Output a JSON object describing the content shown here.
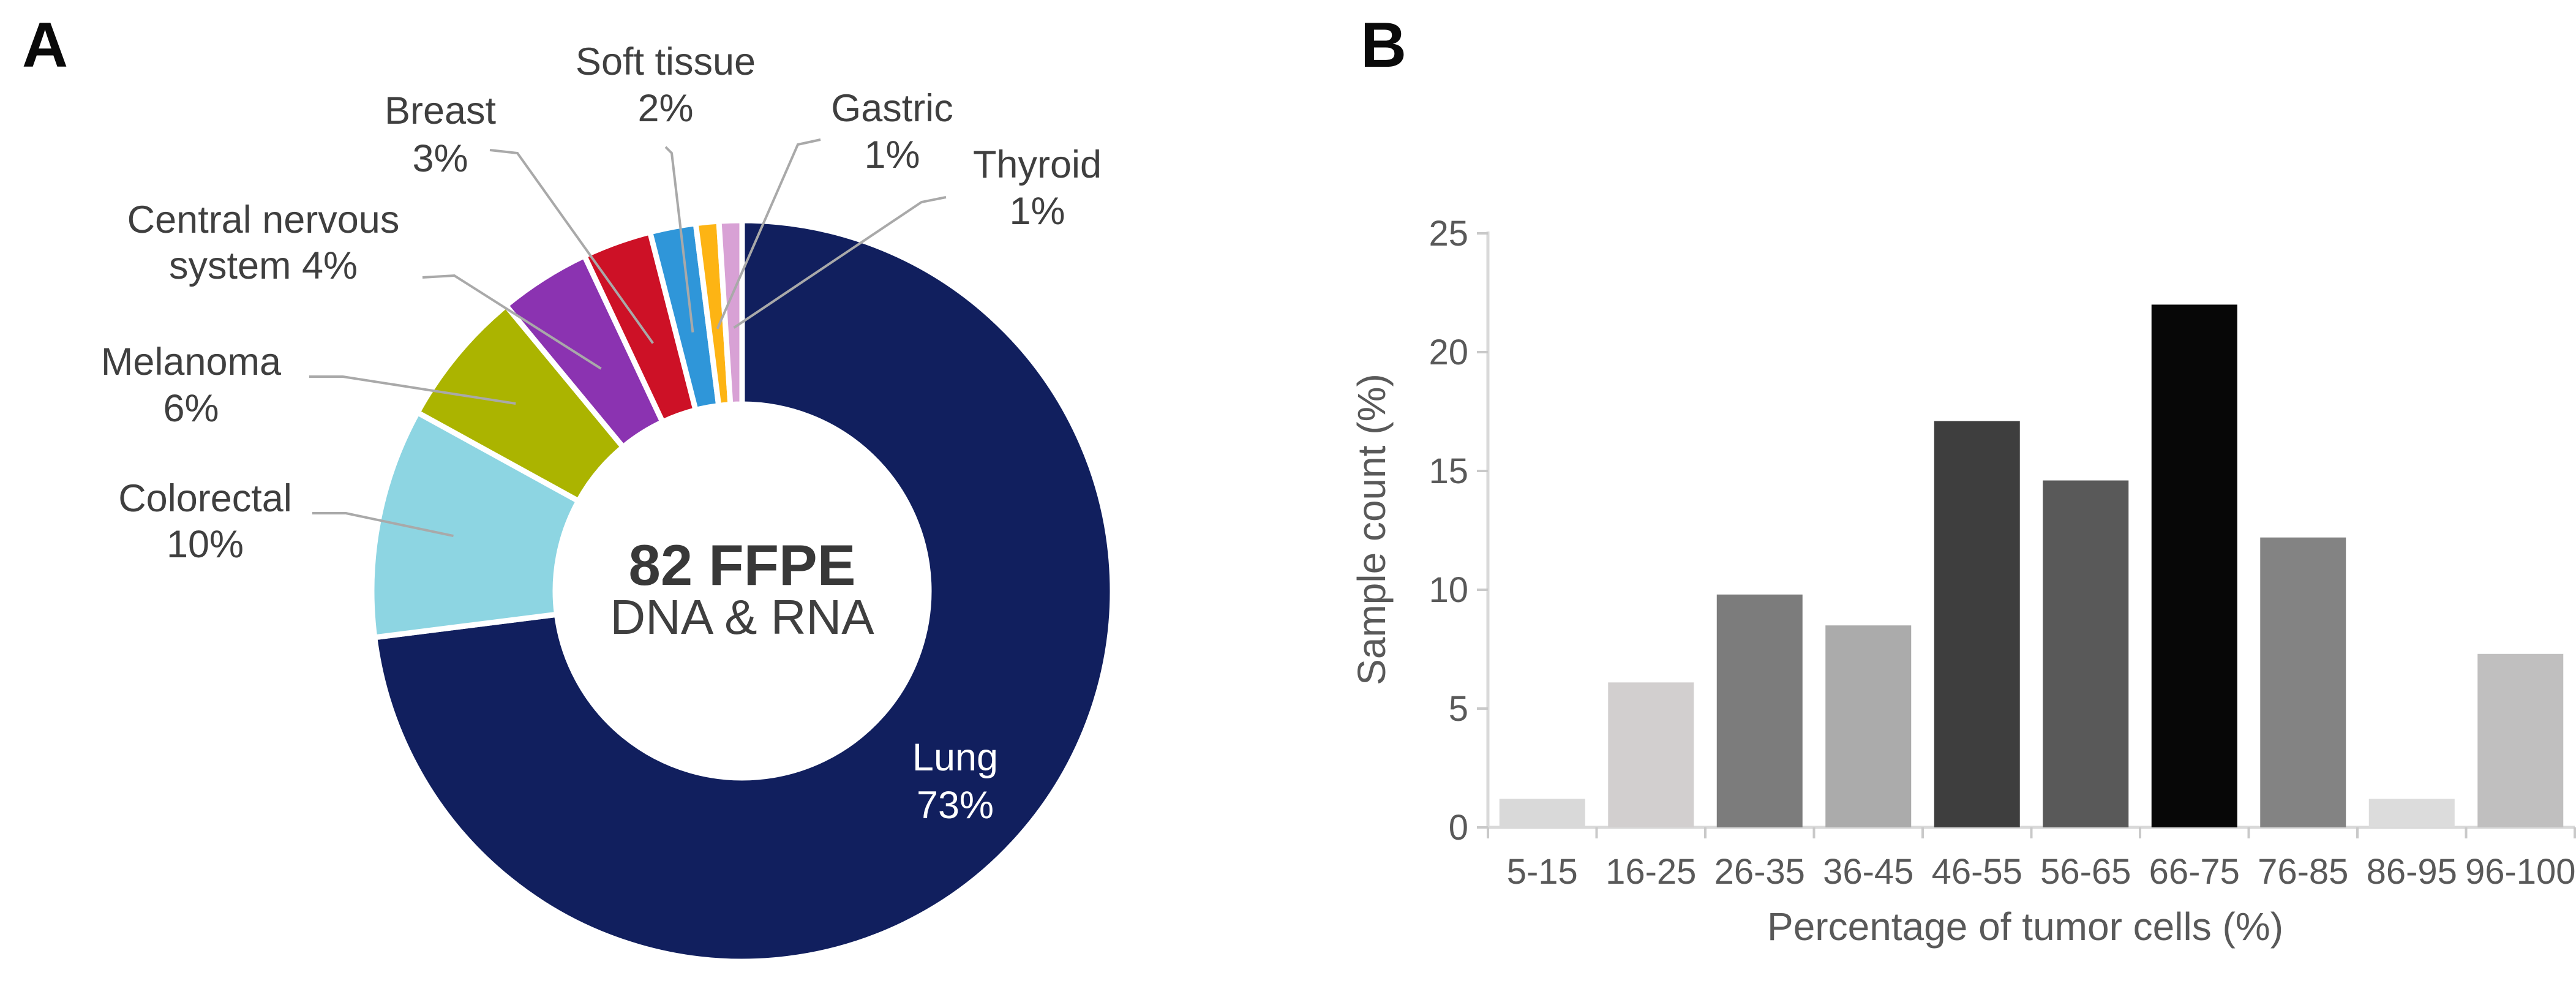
{
  "figure": {
    "panel_a_letter": "A",
    "panel_b_letter": "B"
  },
  "colors": {
    "background": "#ffffff",
    "leader_line": "#a9a9a9",
    "axis_line": "#d9d9d9",
    "axis_tick": "#c9c9c9",
    "axis_text": "#595959",
    "label_text": "#3f3f3f",
    "inside_label_text": "#ffffff",
    "center_text": "#383838",
    "slice_gap": "#ffffff"
  },
  "chart_data": [
    {
      "type": "pie",
      "subtype": "donut",
      "panel": "A",
      "center_label": {
        "line1": "82 FFPE",
        "line2": "DNA & RNA"
      },
      "slices": [
        {
          "label": "Lung",
          "value_pct": 73,
          "color": "#111f5e",
          "label_lines": [
            "Lung",
            "73%"
          ],
          "label_placement": "inside"
        },
        {
          "label": "Colorectal",
          "value_pct": 10,
          "color": "#8dd5e2",
          "label_lines": [
            "Colorectal",
            "10%"
          ],
          "label_placement": "outside"
        },
        {
          "label": "Melanoma",
          "value_pct": 6,
          "color": "#abb400",
          "label_lines": [
            "Melanoma",
            "6%"
          ],
          "label_placement": "outside"
        },
        {
          "label": "Central nervous system",
          "value_pct": 4,
          "color": "#8b33b1",
          "label_lines": [
            "Central nervous",
            "system 4%"
          ],
          "label_placement": "outside"
        },
        {
          "label": "Breast",
          "value_pct": 3,
          "color": "#cd1126",
          "label_lines": [
            "Breast",
            "3%"
          ],
          "label_placement": "outside"
        },
        {
          "label": "Soft tissue",
          "value_pct": 2,
          "color": "#2f96d9",
          "label_lines": [
            "Soft tissue",
            "2%"
          ],
          "label_placement": "outside"
        },
        {
          "label": "Gastric",
          "value_pct": 1,
          "color": "#fdb414",
          "label_lines": [
            "Gastric",
            "1%"
          ],
          "label_placement": "outside"
        },
        {
          "label": "Thyroid",
          "value_pct": 1,
          "color": "#d8a1d5",
          "label_lines": [
            "Thyroid",
            "1%"
          ],
          "label_placement": "outside"
        }
      ]
    },
    {
      "type": "bar",
      "panel": "B",
      "categories": [
        "5-15",
        "16-25",
        "26-35",
        "36-45",
        "46-55",
        "56-65",
        "66-75",
        "76-85",
        "86-95",
        "96-100"
      ],
      "values": [
        1.2,
        6.1,
        9.8,
        8.5,
        17.1,
        14.6,
        22.0,
        12.2,
        1.2,
        7.3
      ],
      "bar_colors": [
        "#d9d9d9",
        "#d2cfcf",
        "#7c7c7c",
        "#ababab",
        "#3e3e3e",
        "#595959",
        "#070707",
        "#838383",
        "#dcdcdc",
        "#c0bfbf"
      ],
      "xlabel": "Percentage of tumor cells (%)",
      "ylabel": "Sample count (%)",
      "yticks": [
        0,
        5,
        10,
        15,
        20,
        25
      ],
      "ylim": [
        0,
        25
      ],
      "grid": false,
      "legend": null
    }
  ]
}
